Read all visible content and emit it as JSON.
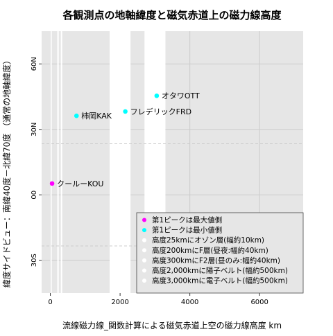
{
  "chart_data": {
    "type": "scatter",
    "title": "各観測点の地軸緯度と磁気赤道上の磁力線高度",
    "xlabel": "流線磁力線_関数計算による磁気赤道上空の磁力線高度 km",
    "ylabel": "緯度サイドビュー：南緯40度－北緯70度 （通常の地軸緯度）",
    "xlim": [
      -250,
      7250
    ],
    "ylim": [
      -45,
      75
    ],
    "x_ticks": [
      {
        "value": 0,
        "label": "0"
      },
      {
        "value": 2000,
        "label": "2000"
      },
      {
        "value": 4000,
        "label": "4000"
      },
      {
        "value": 6000,
        "label": "6000"
      }
    ],
    "y_ticks": [
      {
        "value": -30,
        "label": "30S"
      },
      {
        "value": 0,
        "label": "00"
      },
      {
        "value": 30,
        "label": "30N"
      },
      {
        "value": 60,
        "label": "60N"
      }
    ],
    "grid": true,
    "legend_position": "bottom-right",
    "bands": [
      {
        "x0": 0,
        "x1": 40,
        "color": "#ffffff"
      },
      {
        "x0": 200,
        "x1": 240,
        "color": "#ffffff"
      },
      {
        "x0": 300,
        "x1": 340,
        "color": "#ffffff"
      },
      {
        "x0": 1700,
        "x1": 2300,
        "color": "#ffffff"
      },
      {
        "x0": 2700,
        "x1": 3300,
        "color": "#ffffff"
      }
    ],
    "hlines": [
      {
        "y": 23.4,
        "color": "#cccccc"
      },
      {
        "y": -23.4,
        "color": "#cccccc"
      }
    ],
    "points": [
      {
        "x": 50,
        "y": 5.2,
        "label": "クールーKOU",
        "color": "#ff00ff"
      },
      {
        "x": 750,
        "y": 36.2,
        "label": "柿岡KAK",
        "color": "#00ffff"
      },
      {
        "x": 2150,
        "y": 38.2,
        "label": "フレデリックFRD",
        "color": "#00ffff"
      },
      {
        "x": 3050,
        "y": 45.4,
        "label": "オタワOTT",
        "color": "#00ffff"
      }
    ],
    "legend": [
      {
        "label": "第1ピークは最大値側",
        "color": "#ff00ff"
      },
      {
        "label": "第1ピークは最小値側",
        "color": "#00ffff"
      },
      {
        "label": "高度25kmにオゾン層(幅約10km)",
        "color": "#ffffff"
      },
      {
        "label": "高度200kmにF層(昼夜:幅約40km)",
        "color": "#ffffff"
      },
      {
        "label": "高度300kmにF2層(昼のみ:幅約40km)",
        "color": "#ffffff"
      },
      {
        "label": "高度2,000kmに陽子ベルト(幅約500km)",
        "color": "#ffffff"
      },
      {
        "label": "高度3,000kmに電子ベルト(幅約500km)",
        "color": "#ffffff"
      }
    ],
    "colors": {
      "background": "#ffffff",
      "panel": "#e6e6e6",
      "grid": "#cccccc",
      "legend_bg": "#e6e6e6"
    }
  }
}
